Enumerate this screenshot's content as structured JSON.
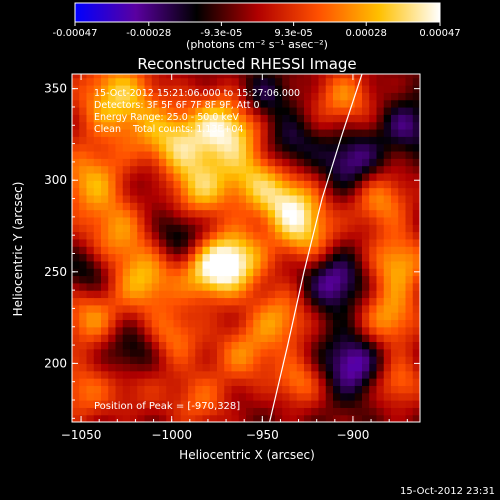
{
  "colorbar": {
    "ticks": [
      "-0.00047",
      "-0.00028",
      "-9.3e-05",
      "9.3e-05",
      "0.00028",
      "0.00047"
    ],
    "tick_values": [
      -0.00047,
      -0.00028,
      -9.3e-05,
      9.3e-05,
      0.00028,
      0.00047
    ],
    "range": [
      -0.00047,
      0.00047
    ],
    "unit_label": "(photons cm⁻² s⁻¹ asec⁻²)",
    "colors": [
      "#0000ff",
      "#5a00a0",
      "#000000",
      "#b00000",
      "#ff5000",
      "#ffc000",
      "#ffffff"
    ]
  },
  "plot": {
    "title": "Reconstructed RHESSI Image",
    "info_lines": [
      "15-Oct-2012 15:21:06.000 to 15:27:06.000",
      "Detectors: 3F 5F 6F 7F 8F 9F, Att 0",
      "Energy Range: 25.0 - 50.0 keV",
      "Clean    Total counts: 1.13E+04"
    ],
    "peak_text": "Position of Peak = [-970,328]",
    "date_stamp": "15-Oct-2012 23:31"
  },
  "chart_data": {
    "type": "heatmap",
    "title": "Reconstructed RHESSI Image",
    "xlabel": "Heliocentric X (arcsec)",
    "ylabel": "Heliocentric Y (arcsec)",
    "xlim": [
      -1055,
      -863
    ],
    "ylim": [
      168,
      358
    ],
    "x_ticks": [
      -1050,
      -1000,
      -950,
      -900
    ],
    "x_tick_labels": [
      "−1050",
      "−1000",
      "−950",
      "−900"
    ],
    "y_ticks": [
      200,
      250,
      300,
      350
    ],
    "y_tick_labels": [
      "200",
      "250",
      "300",
      "350"
    ],
    "peak_position": [
      -970,
      328
    ],
    "limb_curve": [
      [
        -946,
        168
      ],
      [
        -936,
        210
      ],
      [
        -927,
        250
      ],
      [
        -917,
        290
      ],
      [
        -906,
        325
      ],
      [
        -895,
        358
      ]
    ],
    "blobs": [
      {
        "x": -970,
        "y": 328,
        "v": 0.00047,
        "s": 14
      },
      {
        "x": -1030,
        "y": 345,
        "v": 0.0004,
        "s": 16
      },
      {
        "x": -1000,
        "y": 320,
        "v": 0.00036,
        "s": 14
      },
      {
        "x": -1045,
        "y": 300,
        "v": 0.00032,
        "s": 14
      },
      {
        "x": -965,
        "y": 257,
        "v": 0.00044,
        "s": 12
      },
      {
        "x": -980,
        "y": 250,
        "v": 0.00036,
        "s": 12
      },
      {
        "x": -935,
        "y": 287,
        "v": 0.0004,
        "s": 12
      },
      {
        "x": -925,
        "y": 270,
        "v": 0.0003,
        "s": 12
      },
      {
        "x": -1030,
        "y": 270,
        "v": 0.00028,
        "s": 14
      },
      {
        "x": -1015,
        "y": 245,
        "v": 0.00033,
        "s": 12
      },
      {
        "x": -985,
        "y": 295,
        "v": 0.00034,
        "s": 12
      },
      {
        "x": -955,
        "y": 300,
        "v": 0.0003,
        "s": 12
      },
      {
        "x": -1045,
        "y": 225,
        "v": 0.0003,
        "s": 12
      },
      {
        "x": -1000,
        "y": 215,
        "v": 0.00028,
        "s": 12
      },
      {
        "x": -960,
        "y": 205,
        "v": 0.00026,
        "s": 12
      },
      {
        "x": -940,
        "y": 225,
        "v": 0.0003,
        "s": 12
      },
      {
        "x": -930,
        "y": 190,
        "v": 0.00026,
        "s": 10
      },
      {
        "x": -880,
        "y": 225,
        "v": 0.00032,
        "s": 12
      },
      {
        "x": -875,
        "y": 255,
        "v": 0.00034,
        "s": 12
      },
      {
        "x": -885,
        "y": 290,
        "v": 0.0003,
        "s": 12
      },
      {
        "x": -905,
        "y": 345,
        "v": 0.00028,
        "s": 12
      },
      {
        "x": -1050,
        "y": 185,
        "v": 0.00024,
        "s": 12
      },
      {
        "x": -1020,
        "y": 190,
        "v": 0.0002,
        "s": 12
      },
      {
        "x": -985,
        "y": 180,
        "v": 0.00022,
        "s": 12
      },
      {
        "x": -875,
        "y": 190,
        "v": 0.00026,
        "s": 10
      },
      {
        "x": -910,
        "y": 245,
        "v": -0.00028,
        "s": 12
      },
      {
        "x": -900,
        "y": 310,
        "v": -0.00026,
        "s": 12
      },
      {
        "x": -900,
        "y": 200,
        "v": -0.0003,
        "s": 12
      },
      {
        "x": -1020,
        "y": 205,
        "v": -0.00024,
        "s": 12
      },
      {
        "x": -995,
        "y": 270,
        "v": -0.0002,
        "s": 10
      },
      {
        "x": -1045,
        "y": 250,
        "v": -0.00018,
        "s": 10
      },
      {
        "x": -950,
        "y": 345,
        "v": -0.0002,
        "s": 10
      },
      {
        "x": -935,
        "y": 320,
        "v": -0.00018,
        "s": 10
      },
      {
        "x": -870,
        "y": 330,
        "v": -0.0002,
        "s": 10
      },
      {
        "x": -1010,
        "y": 300,
        "v": -0.00012,
        "s": 10
      }
    ]
  }
}
